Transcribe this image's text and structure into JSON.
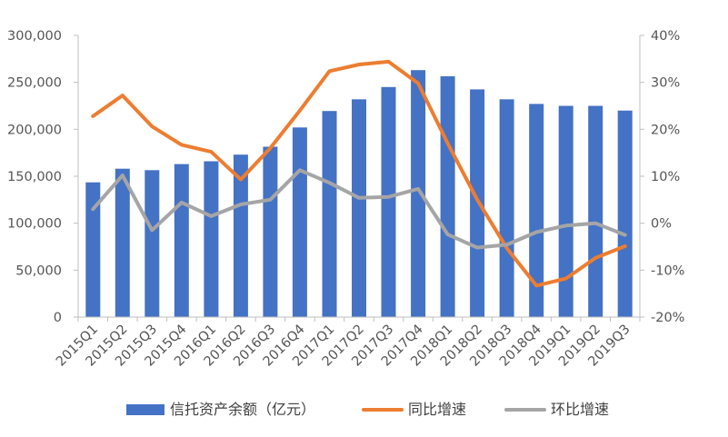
{
  "chart_data": {
    "type": "bar",
    "categories": [
      "2015Q1",
      "2015Q2",
      "2015Q3",
      "2015Q4",
      "2016Q1",
      "2016Q2",
      "2016Q3",
      "2016Q4",
      "2017Q1",
      "2017Q2",
      "2017Q3",
      "2017Q4",
      "2018Q1",
      "2018Q2",
      "2018Q3",
      "2018Q4",
      "2019Q1",
      "2019Q2",
      "2019Q3"
    ],
    "series": [
      {
        "name": "信托资产余额（亿元）",
        "type": "bar",
        "axis": "left",
        "color": "#4472C4",
        "values": [
          143500,
          158000,
          156500,
          163000,
          166000,
          173000,
          181500,
          202000,
          219500,
          232000,
          245000,
          263000,
          256500,
          242500,
          232000,
          227000,
          225000,
          225000,
          220000
        ]
      },
      {
        "name": "同比增速",
        "type": "line",
        "axis": "right",
        "color": "#ED7D31",
        "values": [
          22.8,
          27.2,
          20.6,
          16.7,
          15.2,
          9.3,
          16.0,
          24.0,
          32.4,
          33.8,
          34.4,
          29.8,
          17.0,
          5.0,
          -5.3,
          -13.3,
          -11.8,
          -7.4,
          -4.9
        ]
      },
      {
        "name": "环比增速",
        "type": "line",
        "axis": "right",
        "color": "#A5A5A5",
        "values": [
          3.0,
          10.2,
          -1.5,
          4.4,
          1.5,
          4.0,
          5.0,
          11.3,
          8.6,
          5.4,
          5.6,
          7.3,
          -2.4,
          -5.2,
          -4.6,
          -1.9,
          -0.5,
          0.0,
          -2.5
        ]
      }
    ],
    "left_axis": {
      "ylim": [
        0,
        300000
      ],
      "ticks": [
        0,
        50000,
        100000,
        150000,
        200000,
        250000,
        300000
      ],
      "tick_labels": [
        "0",
        "50,000",
        "100,000",
        "150,000",
        "200,000",
        "250,000",
        "300,000"
      ]
    },
    "right_axis": {
      "ylim": [
        -20,
        40
      ],
      "ticks": [
        -20,
        -10,
        0,
        10,
        20,
        30,
        40
      ],
      "tick_labels": [
        "-20%",
        "-10%",
        "0%",
        "10%",
        "20%",
        "30%",
        "40%"
      ]
    },
    "title": "",
    "xlabel": "",
    "grid": false,
    "legend_position": "bottom"
  }
}
